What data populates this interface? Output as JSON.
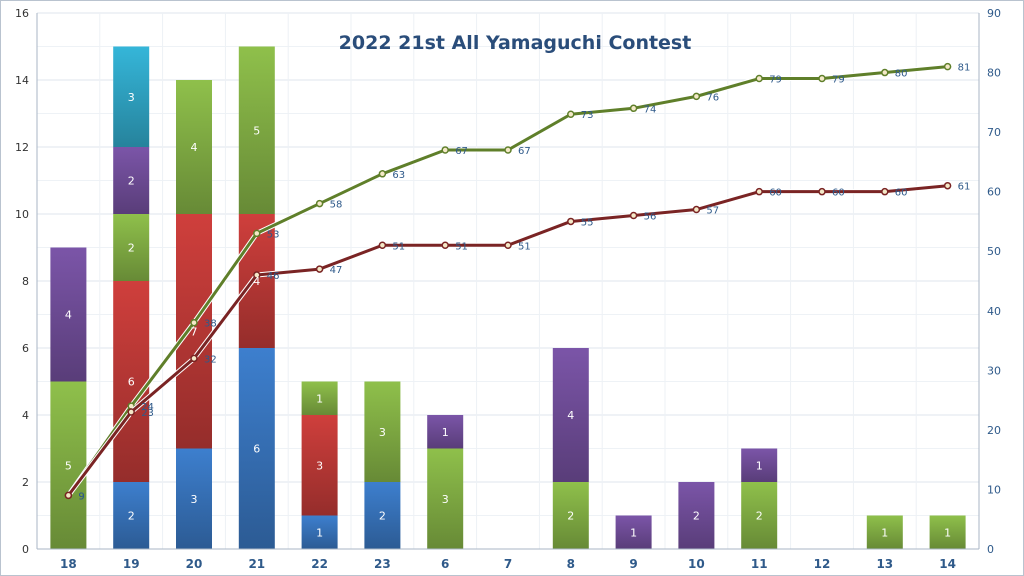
{
  "chart_data": {
    "type": "bar",
    "title": "2022 21st All Yamaguchi Contest",
    "categories": [
      "18",
      "19",
      "20",
      "21",
      "22",
      "23",
      "6",
      "7",
      "8",
      "9",
      "10",
      "11",
      "12",
      "13",
      "14"
    ],
    "y_left": {
      "min": 0,
      "max": 16,
      "ticks": [
        0,
        2,
        4,
        6,
        8,
        10,
        12,
        14,
        16
      ]
    },
    "y_right": {
      "min": 0,
      "max": 90,
      "ticks": [
        0,
        10,
        20,
        30,
        40,
        50,
        60,
        70,
        80,
        90
      ]
    },
    "grid": true,
    "colors": {
      "blue": "#3d7fce",
      "red": "#cf3f3c",
      "green": "#8fc04b",
      "purple": "#7b55a8",
      "cyan": "#35b6d9",
      "line_green": "#5f7f2a",
      "line_red": "#7a2424",
      "title": "#2a4d7a",
      "axis_text": "#2f5a8a"
    },
    "bar_series": [
      {
        "color": "blue",
        "values": [
          0,
          2,
          3,
          6,
          1,
          2,
          0,
          0,
          0,
          0,
          0,
          0,
          0,
          0,
          0
        ]
      },
      {
        "color": "red",
        "values": [
          0,
          6,
          7,
          4,
          3,
          0,
          0,
          0,
          0,
          0,
          0,
          0,
          0,
          0,
          0
        ]
      },
      {
        "color": "green",
        "values": [
          5,
          2,
          4,
          5,
          1,
          3,
          3,
          0,
          2,
          0,
          0,
          2,
          0,
          1,
          1
        ]
      },
      {
        "color": "purple",
        "values": [
          4,
          2,
          0,
          0,
          0,
          0,
          1,
          0,
          4,
          1,
          2,
          1,
          0,
          0,
          0
        ]
      },
      {
        "color": "cyan",
        "values": [
          0,
          3,
          0,
          0,
          0,
          0,
          0,
          0,
          0,
          0,
          0,
          0,
          0,
          0,
          0
        ]
      }
    ],
    "line_series": [
      {
        "color": "line_green",
        "axis": "right",
        "values": [
          9,
          24,
          38,
          53,
          58,
          63,
          67,
          67,
          73,
          74,
          76,
          79,
          79,
          80,
          81
        ]
      },
      {
        "color": "line_red",
        "axis": "right",
        "values": [
          9,
          23,
          32,
          46,
          47,
          51,
          51,
          51,
          55,
          56,
          57,
          60,
          60,
          60,
          61
        ]
      }
    ]
  }
}
